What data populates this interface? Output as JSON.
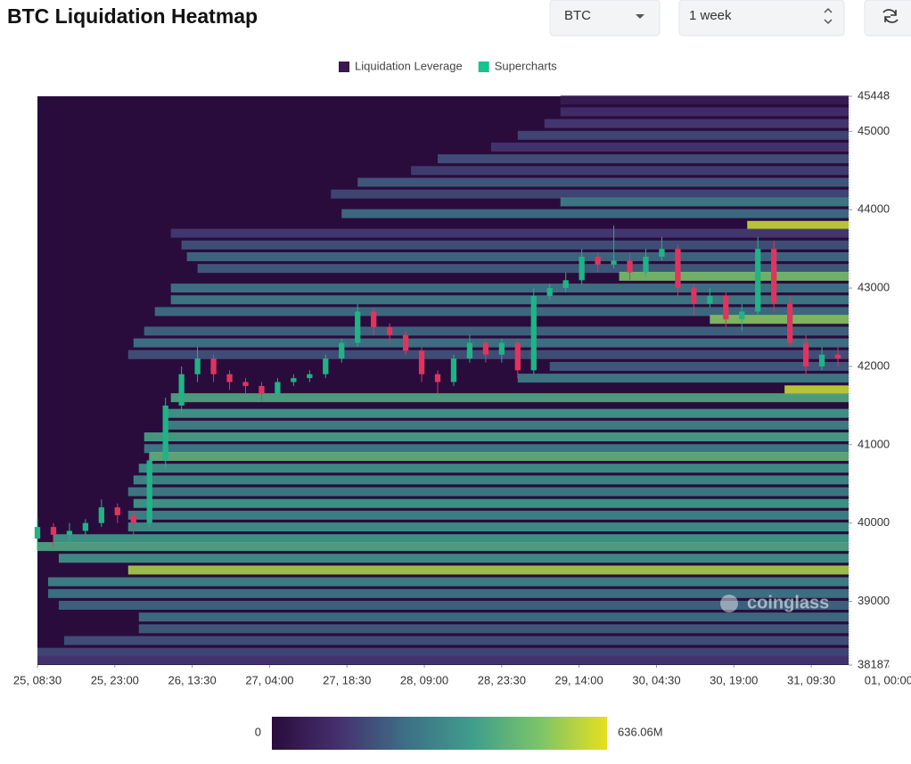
{
  "controls": {
    "symbol": "BTC",
    "period": "1 week"
  },
  "chart_data": {
    "type": "heatmap",
    "title": "BTC Liquidation Heatmap",
    "watermark": "coinglass",
    "legend": [
      {
        "name": "Liquidation Leverage",
        "color": "#3b1551"
      },
      {
        "name": "Supercharts",
        "color": "#18c38d"
      }
    ],
    "xlim": [
      0,
      152
    ],
    "xticks": [
      {
        "value": 0,
        "label": "25, 08:30"
      },
      {
        "value": 14.5,
        "label": "25, 23:00"
      },
      {
        "value": 29,
        "label": "26, 13:30"
      },
      {
        "value": 43.5,
        "label": "27, 04:00"
      },
      {
        "value": 58,
        "label": "27, 18:30"
      },
      {
        "value": 72.5,
        "label": "28, 09:00"
      },
      {
        "value": 87,
        "label": "28, 23:30"
      },
      {
        "value": 101.5,
        "label": "29, 14:00"
      },
      {
        "value": 116,
        "label": "30, 04:30"
      },
      {
        "value": 130.5,
        "label": "30, 19:00"
      },
      {
        "value": 145,
        "label": "31, 09:30"
      }
    ],
    "extra_xtick": {
      "value": 159.5,
      "label": "01, 00:00"
    },
    "ylim": [
      38187,
      45448
    ],
    "yticks": [
      38187,
      39000,
      40000,
      41000,
      42000,
      43000,
      44000,
      45000,
      45448
    ],
    "colorscale": [
      "#2a0c3c",
      "#45306e",
      "#3e6f86",
      "#3f9e8c",
      "#7cc46a",
      "#e6e01e"
    ],
    "colorbar": {
      "min": 0,
      "max": {
        "value": 636.06,
        "label": "636.06M"
      }
    },
    "heatmap": {
      "prices": [
        45400,
        45250,
        45100,
        44950,
        44800,
        44650,
        44500,
        44350,
        44200,
        44100,
        43950,
        43800,
        43700,
        43550,
        43400,
        43250,
        43150,
        43000,
        42850,
        42700,
        42600,
        42450,
        42300,
        42150,
        42000,
        41850,
        41700,
        41600,
        41400,
        41250,
        41100,
        40950,
        40850,
        40700,
        40550,
        40400,
        40250,
        40100,
        39950,
        39800,
        39700,
        39550,
        39400,
        39250,
        39100,
        38950,
        38800,
        38650,
        38500,
        38350,
        38250
      ],
      "starts": [
        98,
        98,
        95,
        90,
        85,
        75,
        70,
        60,
        55,
        98,
        57,
        133,
        25,
        27,
        28,
        30,
        109,
        25,
        25,
        22,
        126,
        20,
        18,
        17,
        96,
        90,
        140,
        25,
        24,
        24,
        20,
        20,
        21,
        19,
        18,
        17,
        18,
        17,
        17,
        3,
        0,
        4,
        17,
        2,
        2,
        4,
        19,
        19,
        5,
        0,
        0
      ],
      "values": [
        60,
        120,
        150,
        180,
        140,
        200,
        160,
        220,
        180,
        300,
        260,
        600,
        150,
        200,
        250,
        220,
        500,
        280,
        300,
        260,
        520,
        240,
        280,
        200,
        220,
        300,
        600,
        420,
        380,
        320,
        400,
        300,
        450,
        360,
        340,
        300,
        380,
        320,
        360,
        380,
        420,
        360,
        560,
        320,
        280,
        240,
        260,
        220,
        200,
        180,
        140
      ]
    },
    "candles": {
      "up_color": "#1fb386",
      "down_color": "#e0345e",
      "x": [
        0,
        3,
        6,
        9,
        12,
        15,
        18,
        21,
        24,
        27,
        30,
        33,
        36,
        39,
        42,
        45,
        48,
        51,
        54,
        57,
        60,
        63,
        66,
        69,
        72,
        75,
        78,
        81,
        84,
        87,
        90,
        93,
        96,
        99,
        102,
        105,
        108,
        111,
        114,
        117,
        120,
        123,
        126,
        129,
        132,
        135,
        138,
        141,
        144,
        147,
        150
      ],
      "open": [
        39800,
        39950,
        39850,
        39900,
        40000,
        40200,
        40100,
        40000,
        40800,
        41500,
        41900,
        42100,
        41900,
        41800,
        41750,
        41650,
        41800,
        41850,
        41900,
        42100,
        42300,
        42700,
        42500,
        42400,
        42200,
        41900,
        41800,
        42100,
        42300,
        42150,
        42300,
        41950,
        42900,
        43000,
        43100,
        43400,
        43300,
        43350,
        43200,
        43400,
        43500,
        43000,
        42800,
        42900,
        42600,
        42700,
        43500,
        42800,
        42300,
        42000,
        42150
      ],
      "high": [
        40050,
        40000,
        40000,
        40050,
        40300,
        40250,
        40150,
        40900,
        41600,
        42000,
        42250,
        42150,
        41950,
        41850,
        41800,
        41850,
        41900,
        41950,
        42150,
        42350,
        42800,
        42750,
        42550,
        42450,
        42250,
        41950,
        42150,
        42400,
        42350,
        42350,
        42350,
        43000,
        43050,
        43200,
        43500,
        43450,
        43800,
        43450,
        43500,
        43650,
        43550,
        43050,
        43000,
        42950,
        42800,
        43650,
        43600,
        42900,
        42400,
        42250,
        42250
      ],
      "low": [
        39650,
        39700,
        39750,
        39850,
        39950,
        40000,
        39850,
        39950,
        40700,
        41400,
        41800,
        41800,
        41700,
        41650,
        41550,
        41600,
        41750,
        41800,
        41850,
        42050,
        42250,
        42400,
        42300,
        42150,
        41800,
        41650,
        41750,
        42050,
        42050,
        42050,
        41850,
        41900,
        42850,
        42950,
        43050,
        43200,
        43250,
        43100,
        43150,
        43350,
        42900,
        42650,
        42750,
        42500,
        42450,
        42650,
        42700,
        42250,
        41900,
        41950,
        42000
      ],
      "close": [
        39950,
        39850,
        39900,
        40000,
        40200,
        40100,
        40000,
        40800,
        41500,
        41900,
        42100,
        41900,
        41800,
        41750,
        41650,
        41800,
        41850,
        41900,
        42100,
        42300,
        42700,
        42500,
        42400,
        42200,
        41900,
        41800,
        42100,
        42300,
        42150,
        42300,
        41950,
        42900,
        43000,
        43100,
        43400,
        43300,
        43350,
        43200,
        43400,
        43500,
        43000,
        42800,
        42900,
        42600,
        42700,
        43500,
        42800,
        42300,
        42000,
        42150,
        42100
      ]
    }
  }
}
